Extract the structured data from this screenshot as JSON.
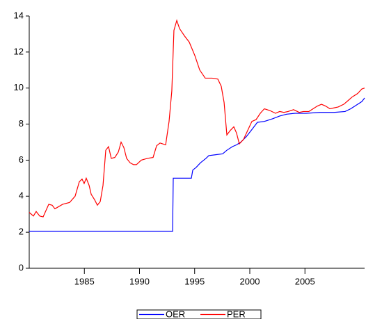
{
  "chart_data": {
    "type": "line",
    "xlim": [
      1980,
      2010.41
    ],
    "xticks": [
      1985,
      1990,
      1995,
      2000,
      2005
    ],
    "ylim": [
      0,
      14
    ],
    "yticks": [
      0,
      2,
      4,
      6,
      8,
      10,
      12,
      14
    ],
    "legend": "bottom",
    "series": [
      {
        "name": "OER",
        "color": "#0000ff",
        "x": [
          1980.0,
          1993.0,
          1993.06,
          1994.7,
          1994.83,
          1995.14,
          1995.52,
          1996.03,
          1996.28,
          1996.91,
          1997.54,
          1997.92,
          1998.42,
          1998.8,
          1999.18,
          1999.68,
          2000.19,
          2000.69,
          2001.32,
          2002.08,
          2002.71,
          2003.34,
          2004.1,
          2005.11,
          2006.37,
          2007.63,
          2008.64,
          2009.15,
          2009.65,
          2010.16,
          2010.41
        ],
        "values": [
          2.05,
          2.05,
          5.0,
          5.0,
          5.45,
          5.6,
          5.85,
          6.1,
          6.25,
          6.3,
          6.35,
          6.55,
          6.75,
          6.85,
          7.0,
          7.3,
          7.7,
          8.1,
          8.15,
          8.3,
          8.45,
          8.55,
          8.6,
          8.6,
          8.65,
          8.65,
          8.7,
          8.85,
          9.05,
          9.25,
          9.45
        ]
      },
      {
        "name": "PER",
        "color": "#ff0000",
        "x": [
          1980.0,
          1980.38,
          1980.63,
          1980.95,
          1981.26,
          1981.77,
          1982.08,
          1982.33,
          1983.03,
          1983.66,
          1984.16,
          1984.54,
          1984.79,
          1984.98,
          1985.17,
          1985.43,
          1985.62,
          1985.93,
          1986.18,
          1986.44,
          1986.69,
          1986.94,
          1987.19,
          1987.44,
          1987.76,
          1988.08,
          1988.33,
          1988.58,
          1988.83,
          1989.15,
          1989.46,
          1989.72,
          1990.16,
          1990.73,
          1991.23,
          1991.55,
          1991.86,
          1992.37,
          1992.68,
          1992.93,
          1993.12,
          1993.38,
          1993.63,
          1994.07,
          1994.51,
          1995.02,
          1995.46,
          1995.96,
          1996.59,
          1997.1,
          1997.41,
          1997.67,
          1997.92,
          1998.23,
          1998.55,
          1998.8,
          1999.05,
          1999.43,
          1999.81,
          2000.19,
          2000.57,
          2000.95,
          2001.32,
          2001.83,
          2002.33,
          2002.71,
          2003.09,
          2003.47,
          2003.97,
          2004.48,
          2004.86,
          2005.36,
          2005.74,
          2006.12,
          2006.5,
          2006.88,
          2007.26,
          2007.63,
          2008.01,
          2008.52,
          2008.9,
          2009.27,
          2009.78,
          2010.16,
          2010.41
        ],
        "values": [
          3.1,
          2.9,
          3.15,
          2.9,
          2.85,
          3.55,
          3.5,
          3.3,
          3.55,
          3.65,
          4.0,
          4.8,
          4.95,
          4.7,
          5.0,
          4.6,
          4.1,
          3.8,
          3.5,
          3.7,
          4.6,
          6.55,
          6.75,
          6.1,
          6.15,
          6.45,
          7.0,
          6.7,
          6.1,
          5.85,
          5.75,
          5.75,
          6.0,
          6.1,
          6.15,
          6.8,
          6.95,
          6.85,
          8.15,
          9.85,
          13.2,
          13.75,
          13.3,
          12.9,
          12.55,
          11.8,
          11.0,
          10.55,
          10.55,
          10.5,
          10.1,
          9.2,
          7.4,
          7.65,
          7.85,
          7.5,
          6.9,
          7.15,
          7.65,
          8.15,
          8.25,
          8.6,
          8.85,
          8.75,
          8.6,
          8.7,
          8.65,
          8.7,
          8.8,
          8.65,
          8.7,
          8.7,
          8.85,
          9.0,
          9.1,
          9.0,
          8.85,
          8.9,
          8.95,
          9.1,
          9.3,
          9.5,
          9.7,
          9.95,
          10.0
        ]
      }
    ]
  }
}
